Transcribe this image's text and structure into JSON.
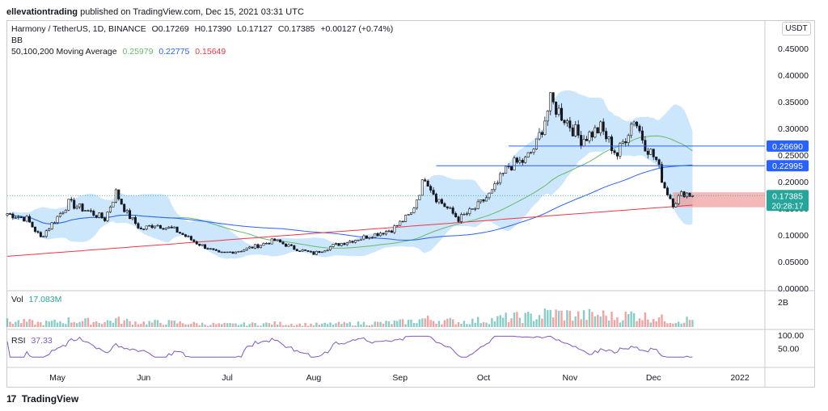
{
  "header": {
    "author": "ellevationtrading",
    "published_text": "published on TradingView.com, Dec 15, 2021 03:31 UTC"
  },
  "legend": {
    "symbol": "Harmony / TetherUS, 1D, BINANCE",
    "open": "O0.17269",
    "high": "H0.17390",
    "low": "L0.17127",
    "close": "C0.17385",
    "change": "+0.00127 (+0.74%)",
    "bb_label": "BB",
    "ma_label": "50,100,200 Moving Average",
    "ma50": "0.25979",
    "ma100": "0.22775",
    "ma200": "0.15649",
    "vol_label": "Vol",
    "vol_value": "17.083M",
    "rsi_label": "RSI",
    "rsi_value": "37.33"
  },
  "unit_label": "USDT",
  "footer": {
    "logo": "17",
    "brand": "TradingView"
  },
  "colors": {
    "up": "#26a69a",
    "down": "#ef5350",
    "ma50": "#66bb6a",
    "ma100": "#2962ff",
    "ma200": "#f23645",
    "bb_fill": "#bbdefb",
    "rsi": "#7e57c2",
    "level": "#2962ff"
  },
  "chart_data": {
    "type": "candlestick",
    "interval": "1D",
    "ylim": [
      0,
      0.5
    ],
    "y_ticks": [
      "0.45000",
      "0.40000",
      "0.35000",
      "0.30000",
      "0.25000",
      "0.20000",
      "0.15000",
      "0.10000",
      "0.05000",
      "0.00000"
    ],
    "y_tick_values": [
      0.45,
      0.4,
      0.35,
      0.3,
      0.25,
      0.2,
      0.15,
      0.1,
      0.05,
      0.0
    ],
    "x_ticks": [
      "May",
      "Jun",
      "Jul",
      "Aug",
      "Sep",
      "Oct",
      "Nov",
      "Dec",
      "2022"
    ],
    "x_tick_dates": [
      "2021-05-01",
      "2021-06-01",
      "2021-07-01",
      "2021-08-01",
      "2021-09-01",
      "2021-10-01",
      "2021-11-01",
      "2021-12-01",
      "2022-01-01"
    ],
    "x_range": [
      "2021-04-13",
      "2022-01-10"
    ],
    "last_date": "2021-12-15",
    "close_anchors": [
      [
        "2021-04-13",
        0.14
      ],
      [
        "2021-04-20",
        0.13
      ],
      [
        "2021-04-25",
        0.095
      ],
      [
        "2021-05-05",
        0.16
      ],
      [
        "2021-05-12",
        0.145
      ],
      [
        "2021-05-18",
        0.13
      ],
      [
        "2021-05-22",
        0.18
      ],
      [
        "2021-05-26",
        0.14
      ],
      [
        "2021-05-31",
        0.11
      ],
      [
        "2021-06-05",
        0.12
      ],
      [
        "2021-06-12",
        0.11
      ],
      [
        "2021-06-20",
        0.085
      ],
      [
        "2021-06-28",
        0.065
      ],
      [
        "2021-07-05",
        0.07
      ],
      [
        "2021-07-12",
        0.08
      ],
      [
        "2021-07-18",
        0.09
      ],
      [
        "2021-07-25",
        0.075
      ],
      [
        "2021-08-01",
        0.065
      ],
      [
        "2021-08-08",
        0.08
      ],
      [
        "2021-08-15",
        0.09
      ],
      [
        "2021-08-22",
        0.1
      ],
      [
        "2021-08-29",
        0.11
      ],
      [
        "2021-09-05",
        0.14
      ],
      [
        "2021-09-10",
        0.21
      ],
      [
        "2021-09-14",
        0.17
      ],
      [
        "2021-09-18",
        0.15
      ],
      [
        "2021-09-22",
        0.13
      ],
      [
        "2021-09-28",
        0.15
      ],
      [
        "2021-10-04",
        0.18
      ],
      [
        "2021-10-10",
        0.23
      ],
      [
        "2021-10-16",
        0.24
      ],
      [
        "2021-10-20",
        0.27
      ],
      [
        "2021-10-25",
        0.35
      ],
      [
        "2021-10-30",
        0.32
      ],
      [
        "2021-11-05",
        0.28
      ],
      [
        "2021-11-12",
        0.3
      ],
      [
        "2021-11-18",
        0.25
      ],
      [
        "2021-11-24",
        0.32
      ],
      [
        "2021-11-28",
        0.27
      ],
      [
        "2021-12-02",
        0.24
      ],
      [
        "2021-12-05",
        0.19
      ],
      [
        "2021-12-08",
        0.16
      ],
      [
        "2021-12-12",
        0.18
      ],
      [
        "2021-12-15",
        0.174
      ]
    ],
    "current_price": {
      "value": 0.17385,
      "label": "0.17385",
      "countdown": "20:28:17"
    },
    "levels": [
      {
        "value": 0.2669,
        "label": "0.26690",
        "start": "2021-10-10"
      },
      {
        "value": 0.22995,
        "label": "0.22995",
        "start": "2021-09-14"
      }
    ],
    "support_zone": {
      "start": "2021-12-08",
      "end": "2022-01-10",
      "low": 0.152,
      "high": 0.18
    },
    "ma50": "0.25979",
    "ma100": "0.22775",
    "ma200": "0.15649",
    "volume": {
      "label": "Vol",
      "value": "17.083M",
      "axis_tick": "2B",
      "peak_date": "2021-05-19"
    },
    "rsi": {
      "label": "RSI",
      "value": "37.33",
      "ticks": [
        "100.00",
        "50.00"
      ],
      "tick_values": [
        100,
        50
      ]
    }
  }
}
